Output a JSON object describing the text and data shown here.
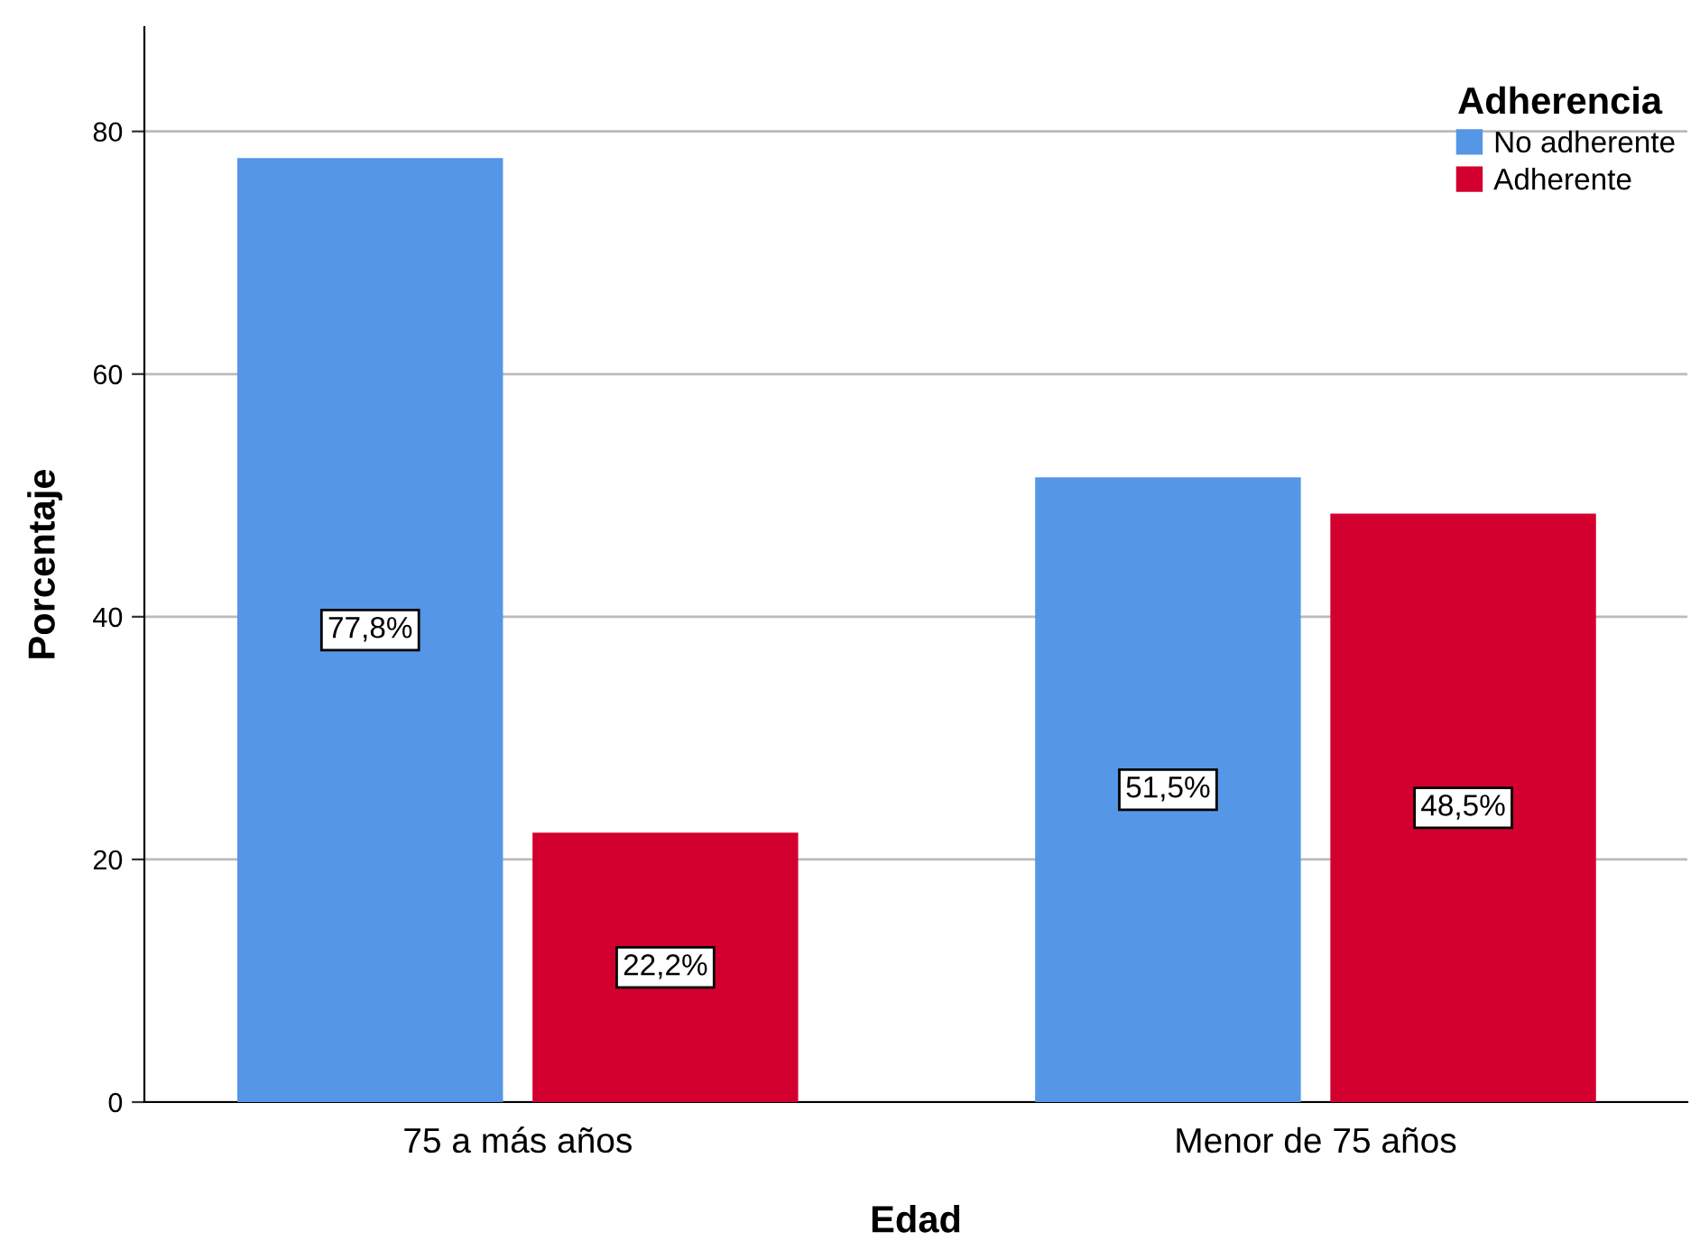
{
  "chart_data": {
    "type": "bar",
    "xlabel": "Edad",
    "ylabel": "Porcentaje",
    "legend_title": "Adherencia",
    "categories": [
      "75 a más años",
      "Menor de 75 años"
    ],
    "series": [
      {
        "name": "No adherente",
        "color": "#5596e6",
        "values": [
          77.8,
          51.5
        ],
        "value_labels": [
          "77,8%",
          "51,5%"
        ]
      },
      {
        "name": "Adherente",
        "color": "#d3002f",
        "values": [
          22.2,
          48.5
        ],
        "value_labels": [
          "22,2%",
          "48,5%"
        ]
      }
    ],
    "ylim": [
      0,
      88.6
    ],
    "yticks": [
      0,
      20,
      40,
      60,
      80
    ],
    "grid": "y",
    "legend": "top right"
  }
}
